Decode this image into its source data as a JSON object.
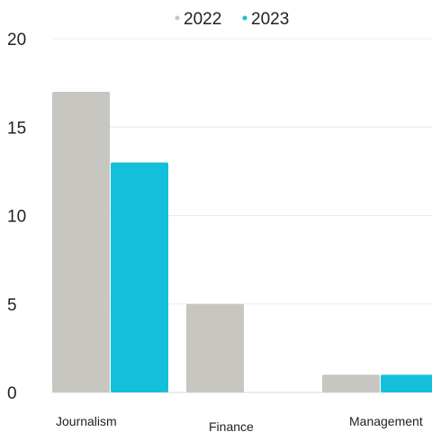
{
  "chart_data": {
    "type": "bar",
    "categories": [
      "Journalism",
      "Finance",
      "Management"
    ],
    "series": [
      {
        "name": "2022",
        "values": [
          17,
          5,
          1
        ],
        "color": "#c7c6c1"
      },
      {
        "name": "2023",
        "values": [
          13,
          0,
          1
        ],
        "color": "#14bfdb"
      }
    ],
    "yticks": [
      0,
      5,
      10,
      15,
      20
    ],
    "ylim": [
      0,
      20
    ],
    "title": "",
    "xlabel": "",
    "ylabel": "",
    "grid": true,
    "legend_position": "top-center"
  }
}
